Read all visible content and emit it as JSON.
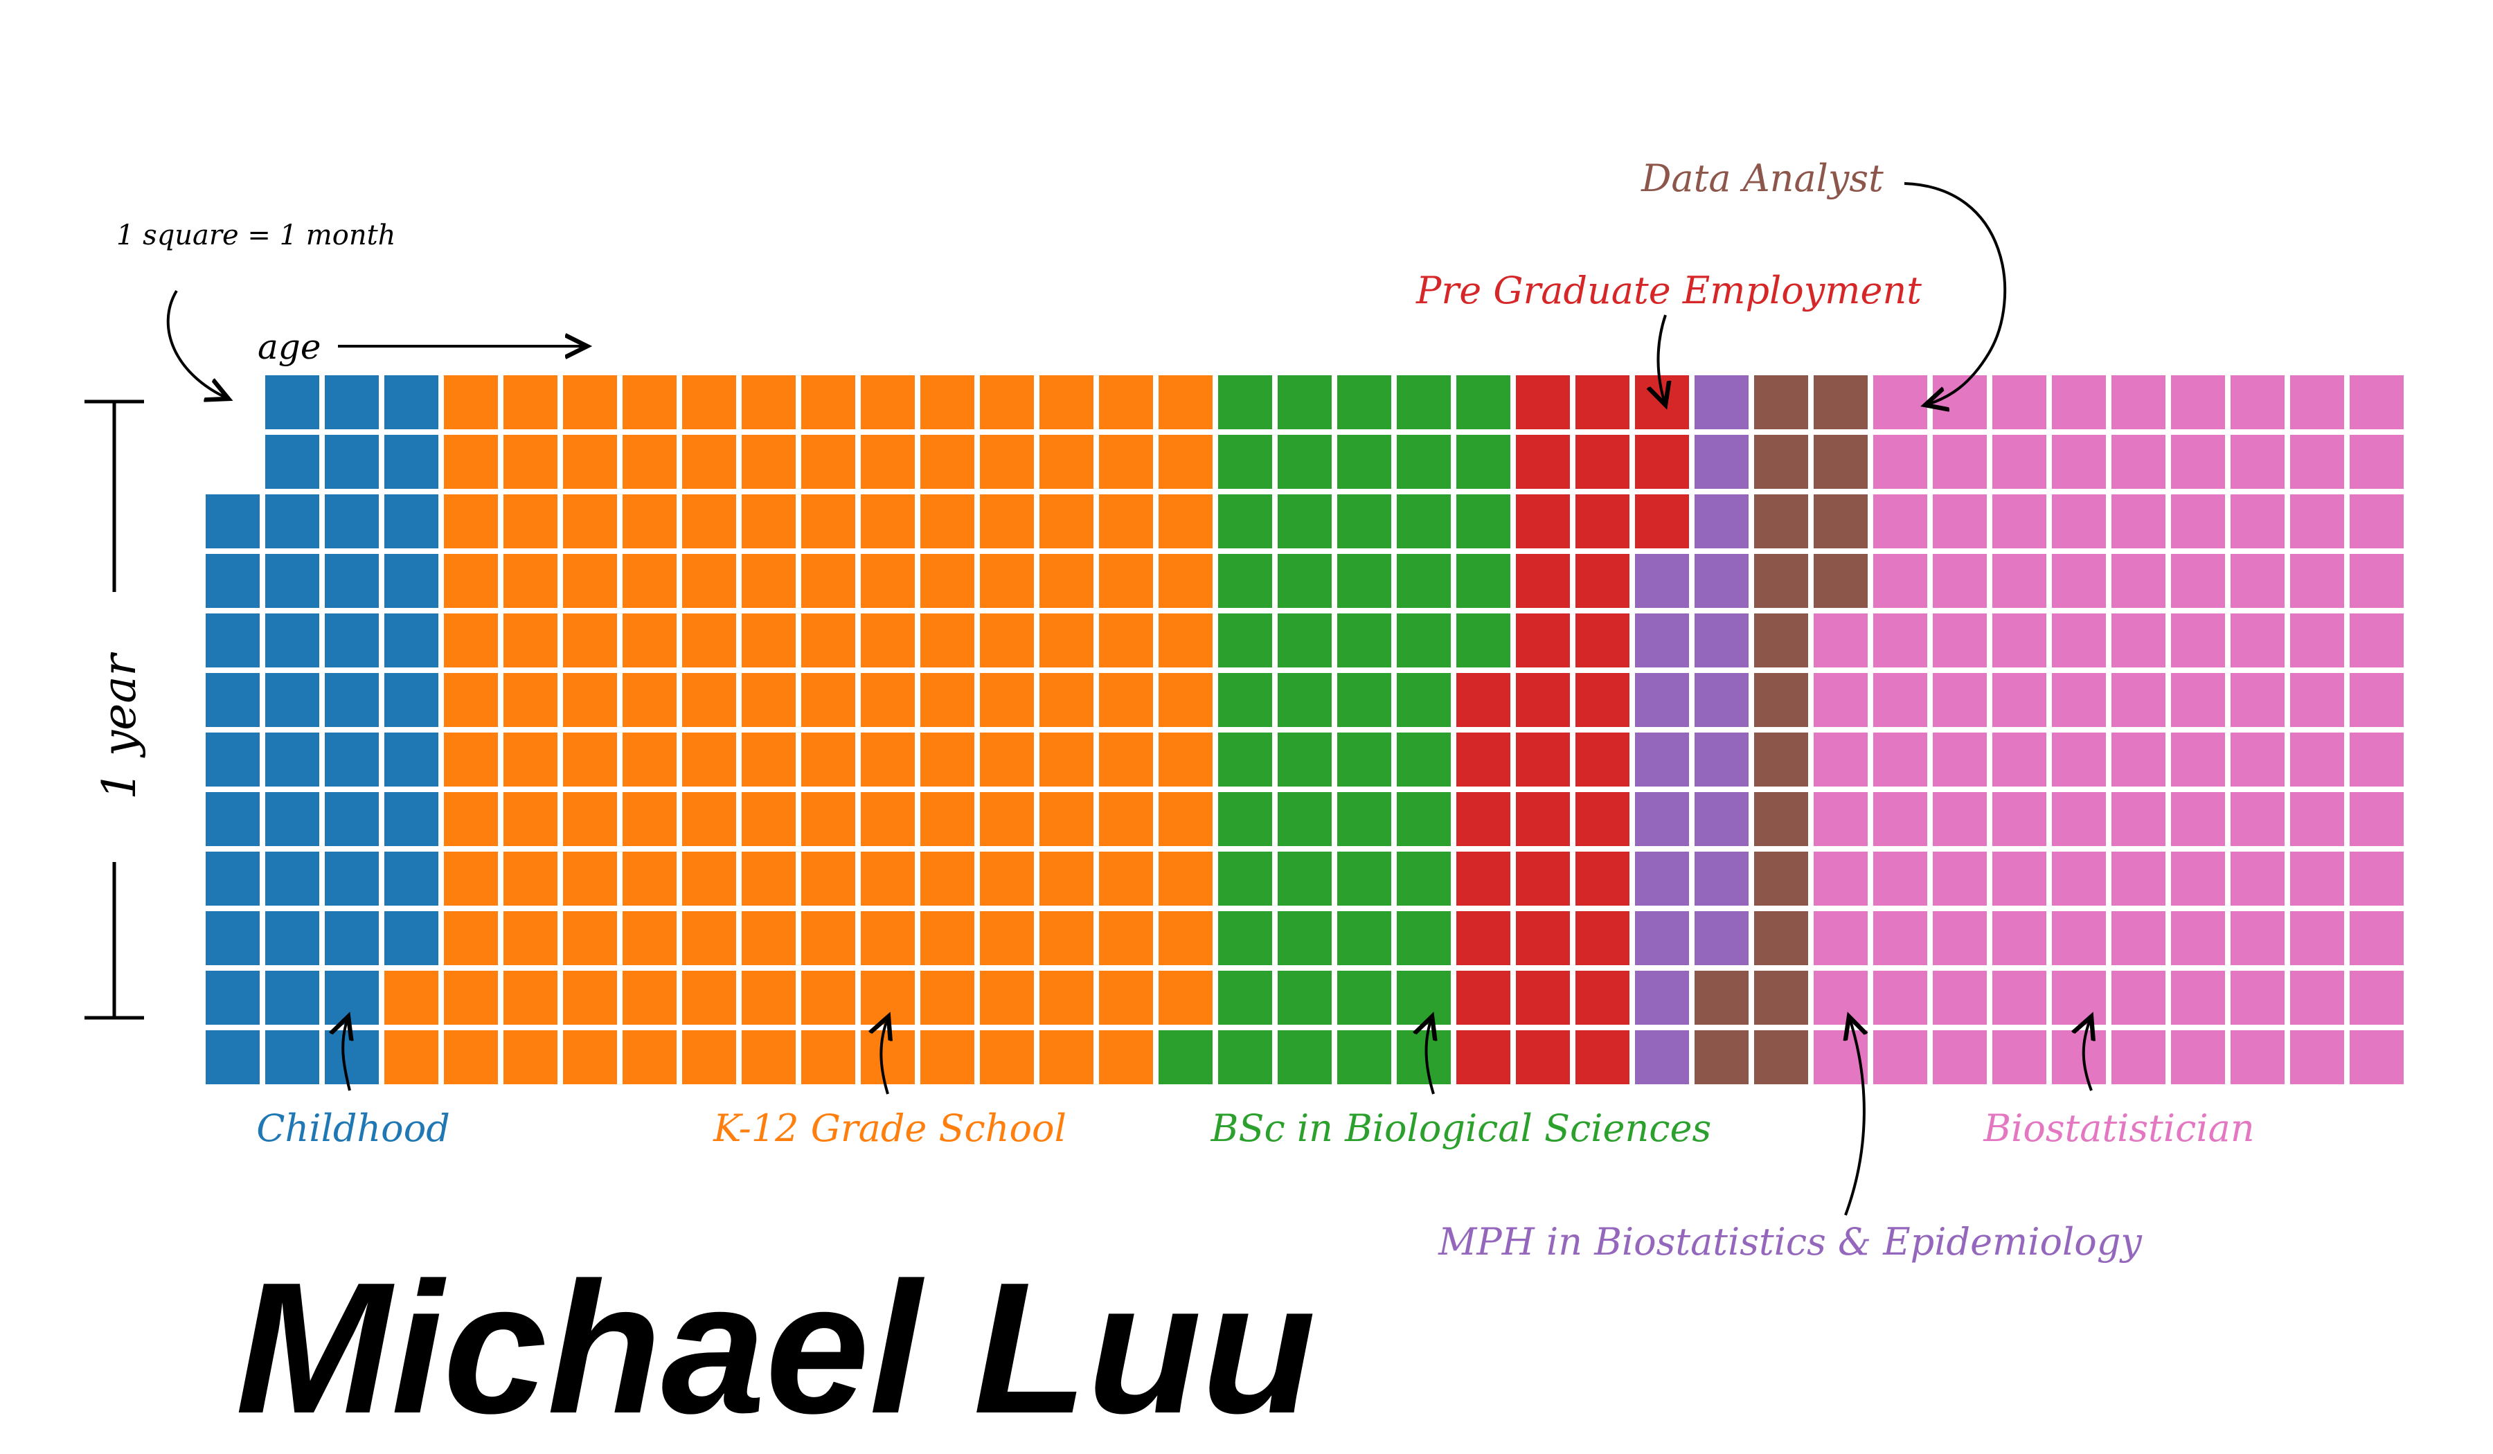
{
  "chart_data": {
    "type": "waffle",
    "title": "Michael Luu",
    "unit_note": "1 square = 1 month",
    "axis_x_label": "age",
    "axis_y_label": "1 year",
    "rows_per_column": 12,
    "total_months": 442,
    "series": [
      {
        "name": "Childhood",
        "months": 44,
        "color": "#1f77b4"
      },
      {
        "name": "K-12 Grade School",
        "months": 157,
        "color": "#ff7f0e"
      },
      {
        "name": "BSc in Biological Sciences",
        "months": 54,
        "color": "#2ca02c"
      },
      {
        "name": "Pre Graduate Employment",
        "months": 34,
        "color": "#d62728"
      },
      {
        "name": "MPH in Biostatistics & Epidemiology",
        "months": 19,
        "color": "#9467bd"
      },
      {
        "name": "Data Analyst",
        "months": 18,
        "color": "#8c564b"
      },
      {
        "name": "Biostatistician",
        "months": 116,
        "color": "#e377c2"
      }
    ]
  }
}
